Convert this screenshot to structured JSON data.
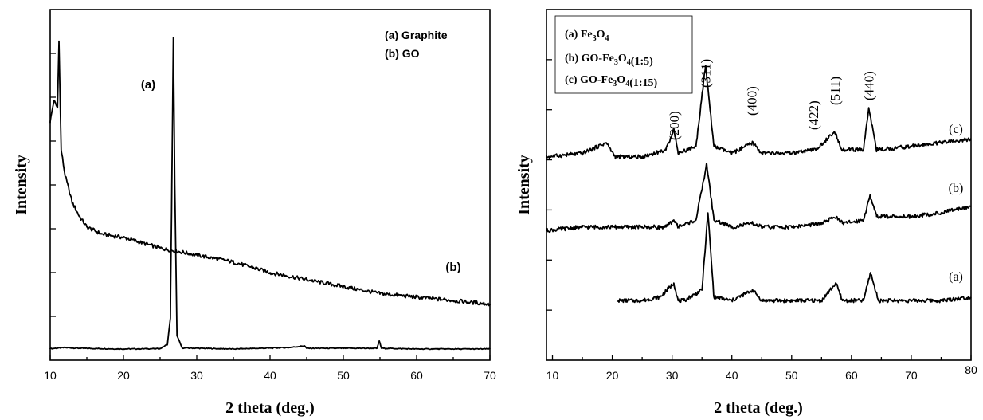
{
  "chart_data": [
    {
      "type": "line",
      "title": "",
      "xlabel": "2 theta (deg.)",
      "ylabel": "Intensity",
      "xlim": [
        10,
        70
      ],
      "x_ticks": [
        10,
        20,
        30,
        40,
        50,
        60,
        70
      ],
      "ylim": [
        0,
        100
      ],
      "y_tick_labels": "none",
      "grid": false,
      "legend_position": "top-right",
      "legend": [
        "(a) Graphite",
        "(b) GO"
      ],
      "series": [
        {
          "name": "(a) Graphite",
          "label": "(a)",
          "x": [
            10,
            12,
            14,
            20,
            25,
            26,
            26.4,
            26.6,
            26.8,
            27.0,
            27.3,
            28,
            35,
            42.5,
            44.7,
            45,
            54.6,
            54.9,
            55.2,
            60,
            70
          ],
          "values": [
            3.3,
            3.6,
            3.4,
            3.2,
            3.3,
            4.5,
            12,
            50,
            92,
            50,
            7,
            3.5,
            3.2,
            3.6,
            4.1,
            3.4,
            3.4,
            5.5,
            3.4,
            3.2,
            3.2
          ]
        },
        {
          "name": "(b) GO",
          "label": "(b)",
          "x": [
            10,
            10.5,
            11,
            11.2,
            11.5,
            12,
            13,
            14,
            15,
            17,
            20,
            25,
            30,
            35,
            40,
            45,
            50,
            55,
            60,
            65,
            70
          ],
          "values": [
            68,
            74,
            72,
            91,
            60,
            53,
            45,
            41,
            38,
            36,
            35,
            32,
            30,
            28,
            25,
            23,
            21,
            19,
            18,
            17,
            16
          ]
        }
      ]
    },
    {
      "type": "line",
      "title": "",
      "xlabel": "2 theta (deg.)",
      "ylabel": "Intensity",
      "xlim": [
        9,
        80
      ],
      "x_ticks": [
        10,
        20,
        30,
        40,
        50,
        60,
        70,
        80
      ],
      "ylim": [
        0,
        100
      ],
      "y_tick_labels": "none",
      "grid": false,
      "legend_position": "top-left",
      "legend": [
        "(a) Fe3O4",
        "(b) GO-Fe3O4(1:5)",
        "(c) GO-Fe3O4(1:15)"
      ],
      "peak_labels": [
        {
          "hkl": "(200)",
          "two_theta": 30.3
        },
        {
          "hkl": "(311)",
          "two_theta": 35.6
        },
        {
          "hkl": "(400)",
          "two_theta": 43.3
        },
        {
          "hkl": "(422)",
          "two_theta": 53.6
        },
        {
          "hkl": "(511)",
          "two_theta": 57.2
        },
        {
          "hkl": "(440)",
          "two_theta": 62.9
        }
      ],
      "series": [
        {
          "name": "(a) Fe3O4",
          "label": "(a)",
          "x": [
            21,
            25,
            28,
            30.3,
            31,
            32,
            35,
            36,
            37,
            40,
            43.5,
            45,
            50,
            55,
            57.4,
            58.5,
            62,
            63.2,
            64.5,
            70,
            75,
            80
          ],
          "values": [
            17,
            17,
            18,
            22,
            17,
            17,
            20,
            42,
            18,
            17,
            20,
            17,
            17,
            17,
            22,
            17,
            17,
            25,
            17,
            17,
            17,
            18
          ]
        },
        {
          "name": "(b) GO-Fe3O4(1:5)",
          "label": "(b)",
          "x": [
            9,
            15,
            20,
            25,
            29,
            30.3,
            31,
            34,
            35.8,
            37,
            40,
            43.5,
            45,
            50,
            55,
            57.5,
            58.5,
            62,
            63.1,
            64.2,
            70,
            75,
            80
          ],
          "values": [
            37,
            38,
            38,
            38,
            38,
            40,
            38,
            40,
            56,
            40,
            38,
            39,
            38,
            38,
            39,
            41,
            39,
            40,
            47,
            41,
            41,
            42,
            44
          ]
        },
        {
          "name": "(c) GO-Fe3O4(1:15)",
          "label": "(c)",
          "x": [
            9,
            15,
            19,
            20.5,
            25,
            29,
            30.3,
            31,
            34,
            35.6,
            37,
            40,
            43.5,
            45,
            50,
            54,
            57.2,
            58.5,
            62,
            62.9,
            64.2,
            70,
            75,
            80
          ],
          "values": [
            58,
            59,
            62,
            58,
            58,
            60,
            66,
            59,
            61,
            84,
            61,
            59,
            62,
            59,
            59,
            60,
            65,
            60,
            60,
            72,
            60,
            61,
            62,
            63
          ]
        }
      ]
    }
  ]
}
